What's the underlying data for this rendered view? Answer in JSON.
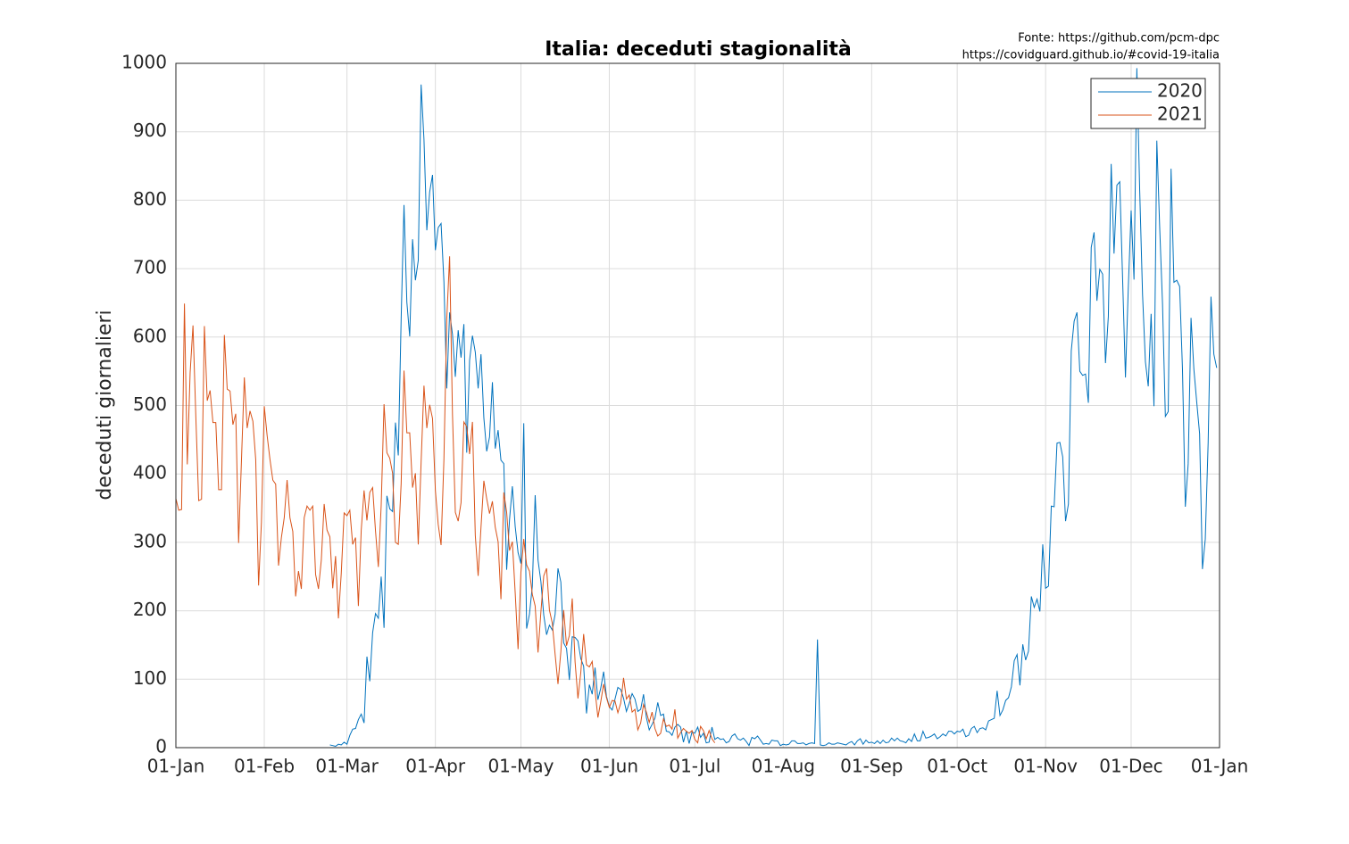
{
  "chart_data": {
    "type": "line",
    "title": "Italia: deceduti stagionalità",
    "annotations": [
      "Fonte: https://github.com/pcm-dpc",
      "https://covidguard.github.io/#covid-19-italia"
    ],
    "ylabel": "deceduti giornalieri",
    "xlim": [
      0,
      366
    ],
    "xticks": [
      {
        "value": 0,
        "label": "01-Jan"
      },
      {
        "value": 31,
        "label": "01-Feb"
      },
      {
        "value": 60,
        "label": "01-Mar"
      },
      {
        "value": 91,
        "label": "01-Apr"
      },
      {
        "value": 121,
        "label": "01-May"
      },
      {
        "value": 152,
        "label": "01-Jun"
      },
      {
        "value": 182,
        "label": "01-Jul"
      },
      {
        "value": 213,
        "label": "01-Aug"
      },
      {
        "value": 244,
        "label": "01-Sep"
      },
      {
        "value": 274,
        "label": "01-Oct"
      },
      {
        "value": 305,
        "label": "01-Nov"
      },
      {
        "value": 335,
        "label": "01-Dec"
      },
      {
        "value": 366,
        "label": "01-Jan"
      }
    ],
    "ylim": [
      0,
      1000
    ],
    "yticks": [
      0,
      100,
      200,
      300,
      400,
      500,
      600,
      700,
      800,
      900,
      1000
    ],
    "grid": true,
    "legend": "northeast",
    "series": [
      {
        "name": "2020",
        "color": "#0072bd",
        "x": [
          54,
          55,
          56,
          57,
          58,
          59,
          60,
          61,
          62,
          63,
          64,
          65,
          66,
          67,
          68,
          69,
          70,
          71,
          72,
          73,
          74,
          75,
          76,
          77,
          78,
          79,
          80,
          81,
          82,
          83,
          84,
          85,
          86,
          87,
          88,
          89,
          90,
          91,
          92,
          93,
          94,
          95,
          96,
          97,
          98,
          99,
          100,
          101,
          102,
          103,
          104,
          105,
          106,
          107,
          108,
          109,
          110,
          111,
          112,
          113,
          114,
          115,
          116,
          117,
          118,
          119,
          120,
          121,
          122,
          123,
          124,
          125,
          126,
          127,
          128,
          129,
          130,
          131,
          132,
          133,
          134,
          135,
          136,
          137,
          138,
          139,
          140,
          141,
          142,
          143,
          144,
          145,
          146,
          147,
          148,
          149,
          150,
          151,
          152,
          153,
          154,
          155,
          156,
          157,
          158,
          159,
          160,
          161,
          162,
          163,
          164,
          165,
          166,
          167,
          168,
          169,
          170,
          171,
          172,
          173,
          174,
          175,
          176,
          177,
          178,
          179,
          180,
          181,
          182,
          183,
          184,
          185,
          186,
          187,
          188,
          189,
          190,
          191,
          192,
          193,
          194,
          195,
          196,
          197,
          198,
          199,
          200,
          201,
          202,
          203,
          204,
          205,
          206,
          207,
          208,
          209,
          210,
          211,
          212,
          213,
          214,
          215,
          216,
          217,
          218,
          219,
          220,
          221,
          222,
          223,
          224,
          225,
          226,
          227,
          228,
          229,
          230,
          231,
          232,
          233,
          234,
          235,
          236,
          237,
          238,
          239,
          240,
          241,
          242,
          243,
          244,
          245,
          246,
          247,
          248,
          249,
          250,
          251,
          252,
          253,
          254,
          255,
          256,
          257,
          258,
          259,
          260,
          261,
          262,
          263,
          264,
          265,
          266,
          267,
          268,
          269,
          270,
          271,
          272,
          273,
          274,
          275,
          276,
          277,
          278,
          279,
          280,
          281,
          282,
          283,
          284,
          285,
          286,
          287,
          288,
          289,
          290,
          291,
          292,
          293,
          294,
          295,
          296,
          297,
          298,
          299,
          300,
          301,
          302,
          303,
          304,
          305,
          306,
          307,
          308,
          309,
          310,
          311,
          312,
          313,
          314,
          315,
          316,
          317,
          318,
          319,
          320,
          321,
          322,
          323,
          324,
          325,
          326,
          327,
          328,
          329,
          330,
          331,
          332,
          333,
          334,
          335,
          336,
          337,
          338,
          339,
          340,
          341,
          342,
          343,
          344,
          345,
          346,
          347,
          348,
          349,
          350,
          351,
          352,
          353,
          354,
          355,
          356,
          357,
          358,
          359,
          360,
          361,
          362,
          363,
          364,
          365
        ],
        "values": [
          4,
          3,
          2,
          5,
          4,
          8,
          5,
          18,
          27,
          28,
          41,
          49,
          36,
          133,
          97,
          168,
          196,
          189,
          250,
          175,
          368,
          349,
          345,
          475,
          427,
          627,
          793,
          651,
          601,
          743,
          683,
          712,
          969,
          889,
          756,
          812,
          837,
          727,
          760,
          766,
          681,
          525,
          636,
          604,
          542,
          610,
          570,
          619,
          431,
          566,
          602,
          578,
          525,
          575,
          482,
          433,
          454,
          534,
          437,
          464,
          420,
          415,
          260,
          333,
          382,
          323,
          285,
          269,
          474,
          174,
          195,
          236,
          369,
          274,
          243,
          194,
          165,
          179,
          172,
          195,
          262,
          242,
          153,
          145,
          99,
          162,
          161,
          156,
          130,
          119,
          50,
          92,
          78,
          117,
          70,
          87,
          111,
          75,
          60,
          55,
          71,
          88,
          85,
          72,
          53,
          65,
          79,
          71,
          53,
          56,
          78,
          44,
          26,
          34,
          43,
          66,
          47,
          49,
          24,
          23,
          18,
          30,
          34,
          30,
          8,
          24,
          6,
          23,
          21,
          30,
          15,
          21,
          7,
          8,
          30,
          12,
          15,
          12,
          13,
          7,
          9,
          17,
          20,
          13,
          11,
          14,
          9,
          3,
          15,
          13,
          17,
          11,
          5,
          6,
          5,
          11,
          10,
          10,
          3,
          5,
          4,
          5,
          10,
          10,
          6,
          6,
          7,
          4,
          6,
          7,
          6,
          158,
          4,
          3,
          4,
          7,
          5,
          5,
          7,
          6,
          5,
          4,
          7,
          9,
          4,
          10,
          13,
          5,
          11,
          7,
          8,
          6,
          10,
          6,
          11,
          7,
          8,
          14,
          10,
          14,
          10,
          9,
          7,
          13,
          9,
          20,
          10,
          10,
          24,
          14,
          15,
          17,
          20,
          13,
          16,
          20,
          17,
          24,
          24,
          20,
          24,
          23,
          27,
          16,
          18,
          28,
          31,
          22,
          28,
          29,
          26,
          39,
          41,
          43,
          83,
          47,
          55,
          69,
          73,
          89,
          127,
          136,
          91,
          151,
          128,
          141,
          221,
          205,
          217,
          199,
          297,
          233,
          236,
          353,
          352,
          445,
          446,
          425,
          331,
          356,
          580,
          623,
          636,
          550,
          544,
          546,
          504,
          731,
          753,
          653,
          699,
          692,
          562,
          630,
          853,
          722,
          822,
          827,
          686,
          541,
          672,
          785,
          684,
          993,
          814,
          662,
          564,
          528,
          634,
          499,
          887,
          761,
          649,
          484,
          491,
          846,
          680,
          683,
          674,
          553,
          352,
          415,
          628,
          553,
          505,
          459,
          261,
          305,
          445,
          659,
          575,
          555
        ]
      },
      {
        "name": "2021",
        "color": "#d95319",
        "x": [
          0,
          1,
          2,
          3,
          4,
          5,
          6,
          7,
          8,
          9,
          10,
          11,
          12,
          13,
          14,
          15,
          16,
          17,
          18,
          19,
          20,
          21,
          22,
          23,
          24,
          25,
          26,
          27,
          28,
          29,
          30,
          31,
          32,
          33,
          34,
          35,
          36,
          37,
          38,
          39,
          40,
          41,
          42,
          43,
          44,
          45,
          46,
          47,
          48,
          49,
          50,
          51,
          52,
          53,
          54,
          55,
          56,
          57,
          58,
          59,
          60,
          61,
          62,
          63,
          64,
          65,
          66,
          67,
          68,
          69,
          70,
          71,
          72,
          73,
          74,
          75,
          76,
          77,
          78,
          79,
          80,
          81,
          82,
          83,
          84,
          85,
          86,
          87,
          88,
          89,
          90,
          91,
          92,
          93,
          94,
          95,
          96,
          97,
          98,
          99,
          100,
          101,
          102,
          103,
          104,
          105,
          106,
          107,
          108,
          109,
          110,
          111,
          112,
          113,
          114,
          115,
          116,
          117,
          118,
          119,
          120,
          121,
          122,
          123,
          124,
          125,
          126,
          127,
          128,
          129,
          130,
          131,
          132,
          133,
          134,
          135,
          136,
          137,
          138,
          139,
          140,
          141,
          142,
          143,
          144,
          145,
          146,
          147,
          148,
          149,
          150,
          151,
          152,
          153,
          154,
          155,
          156,
          157,
          158,
          159,
          160,
          161,
          162,
          163,
          164,
          165,
          166,
          167,
          168,
          169,
          170,
          171,
          172,
          173,
          174,
          175,
          176,
          177,
          178,
          179,
          180,
          181,
          182,
          183,
          184,
          185,
          186,
          187,
          188,
          189
        ],
        "values": [
          364,
          347,
          348,
          649,
          414,
          548,
          617,
          483,
          361,
          363,
          616,
          507,
          522,
          475,
          475,
          377,
          377,
          603,
          524,
          521,
          472,
          488,
          299,
          420,
          541,
          467,
          492,
          477,
          421,
          237,
          329,
          499,
          456,
          421,
          391,
          385,
          266,
          307,
          336,
          391,
          336,
          316,
          221,
          258,
          232,
          336,
          353,
          347,
          353,
          253,
          232,
          274,
          356,
          318,
          308,
          233,
          280,
          189,
          255,
          343,
          339,
          347,
          297,
          307,
          207,
          318,
          376,
          332,
          373,
          380,
          317,
          264,
          354,
          502,
          431,
          423,
          401,
          300,
          297,
          386,
          551,
          460,
          460,
          380,
          401,
          297,
          417,
          529,
          467,
          501,
          481,
          376,
          326,
          296,
          421,
          627,
          718,
          487,
          344,
          331,
          358,
          476,
          469,
          429,
          476,
          310,
          251,
          322,
          390,
          364,
          342,
          360,
          322,
          301,
          217,
          373,
          344,
          288,
          301,
          226,
          144,
          256,
          305,
          267,
          258,
          224,
          207,
          139,
          198,
          251,
          262,
          201,
          182,
          136,
          93,
          140,
          201,
          149,
          164,
          218,
          125,
          72,
          110,
          166,
          121,
          118,
          126,
          83,
          44,
          67,
          93,
          73,
          59,
          69,
          68,
          51,
          65,
          102,
          71,
          77,
          52,
          56,
          26,
          36,
          63,
          52,
          37,
          52,
          28,
          17,
          21,
          42,
          31,
          33,
          27,
          56,
          14,
          22,
          28,
          24,
          21,
          25,
          12,
          7,
          31,
          25,
          13,
          25,
          13,
          7
        ]
      }
    ]
  }
}
